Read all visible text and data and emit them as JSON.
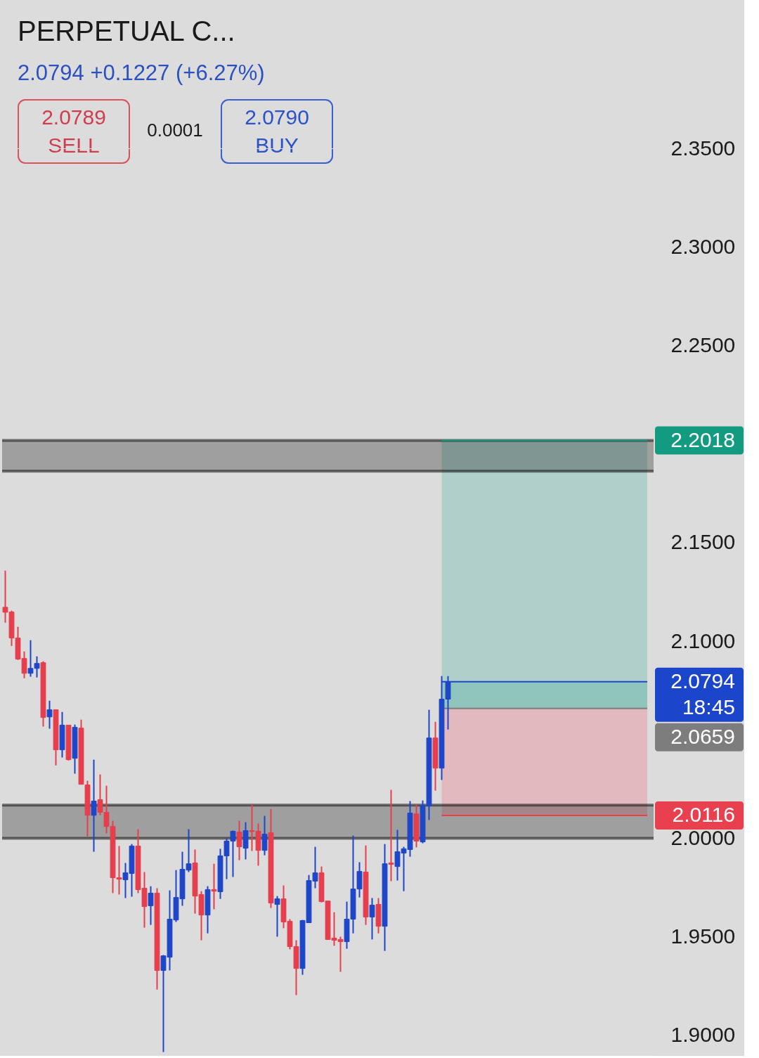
{
  "chart_data": {
    "type": "candlestick",
    "title": "PERPETUAL C...",
    "subtitle": "2.0794 +0.1227 (+6.27%)",
    "annotations": [
      "2.0789",
      "SELL",
      "0.0001",
      "2.0790",
      "BUY"
    ],
    "categories": [
      null,
      null,
      null,
      null,
      null,
      null,
      null,
      null,
      null,
      null,
      null,
      null,
      null,
      null,
      null,
      null,
      null,
      null,
      null,
      null,
      null,
      null,
      null,
      null,
      null,
      null,
      null,
      null,
      null,
      null,
      null,
      null,
      null,
      null,
      null,
      null,
      null,
      null,
      null,
      null,
      null,
      null,
      null,
      null,
      null,
      null,
      null,
      null,
      null,
      null,
      null,
      null,
      null,
      null,
      null,
      null,
      null,
      null,
      null,
      null,
      null,
      null,
      null,
      null,
      null,
      null,
      null,
      null,
      null,
      null,
      null,
      null,
      null,
      null,
      null,
      null,
      null,
      null,
      null,
      null,
      null,
      null,
      null,
      null,
      null,
      null,
      null,
      null,
      null,
      null,
      null,
      null,
      null,
      null,
      null,
      null,
      null,
      null,
      null,
      null,
      null,
      null,
      null
    ],
    "ohlc": [
      [
        2.1172,
        2.1358,
        2.1094,
        2.1147
      ],
      [
        2.1148,
        2.1155,
        2.0976,
        2.1016
      ],
      [
        2.1016,
        2.1073,
        2.0905,
        2.0909
      ],
      [
        2.0912,
        2.0948,
        2.0812,
        2.0837
      ],
      [
        2.0837,
        2.1005,
        2.082,
        2.0862
      ],
      [
        2.0862,
        2.0923,
        2.0816,
        2.0887
      ],
      [
        2.0891,
        2.0898,
        2.0567,
        2.0613
      ],
      [
        2.0616,
        2.0698,
        2.0556,
        2.0652
      ],
      [
        2.0652,
        2.0652,
        2.037,
        2.0449
      ],
      [
        2.0449,
        2.0641,
        2.041,
        2.0574
      ],
      [
        2.0574,
        2.0574,
        2.0395,
        2.0399
      ],
      [
        2.0406,
        2.0577,
        2.0328,
        2.0563
      ],
      [
        2.0559,
        2.0602,
        2.0274,
        2.0274
      ],
      [
        2.0271,
        2.0292,
        2.001,
        2.0117
      ],
      [
        2.0117,
        2.0399,
        1.9932,
        2.0189
      ],
      [
        2.0196,
        2.0324,
        2.0117,
        2.0132
      ],
      [
        2.0132,
        2.0267,
        2.0025,
        2.006
      ],
      [
        2.006,
        2.0089,
        1.9722,
        1.98
      ],
      [
        1.98,
        1.9961,
        1.9715,
        1.9793
      ],
      [
        1.979,
        1.9875,
        1.9697,
        1.9825
      ],
      [
        1.9822,
        1.9971,
        1.9704,
        1.9961
      ],
      [
        1.9961,
        2.0046,
        1.9722,
        1.974
      ],
      [
        1.9747,
        1.9829,
        1.9547,
        1.9654
      ],
      [
        1.9658,
        1.9757,
        1.9561,
        1.9722
      ],
      [
        1.9722,
        1.9747,
        1.9233,
        1.933
      ],
      [
        1.933,
        1.9408,
        1.8916,
        1.9404
      ],
      [
        1.9397,
        1.9736,
        1.933,
        1.959
      ],
      [
        1.9586,
        1.9839,
        1.9576,
        1.97
      ],
      [
        1.9693,
        1.9932,
        1.9658,
        1.9843
      ],
      [
        1.9839,
        2.0046,
        1.9829,
        1.9871
      ],
      [
        1.9875,
        1.9943,
        1.9618,
        1.9707
      ],
      [
        1.9715,
        1.9732,
        1.9483,
        1.9611
      ],
      [
        1.9611,
        1.9757,
        1.9518,
        1.974
      ],
      [
        1.974,
        1.9871,
        1.964,
        1.9732
      ],
      [
        1.9729,
        1.9947,
        1.9693,
        1.9911
      ],
      [
        1.9911,
        2.0,
        1.9793,
        1.9986
      ],
      [
        1.9986,
        2.0039,
        1.9804,
        2.0036
      ],
      [
        2.0032,
        2.0089,
        1.9889,
        1.9957
      ],
      [
        1.995,
        2.0082,
        1.9893,
        2.0039
      ],
      [
        2.0039,
        2.0174,
        1.9936,
        2.0035
      ],
      [
        2.0036,
        2.0075,
        1.9861,
        1.9939
      ],
      [
        1.9939,
        2.0114,
        1.9914,
        2.0021
      ],
      [
        2.0028,
        2.0149,
        1.9647,
        1.9672
      ],
      [
        1.9665,
        1.9707,
        1.9501,
        1.9693
      ],
      [
        1.9693,
        1.9761,
        1.9544,
        1.9576
      ],
      [
        1.9579,
        1.959,
        1.9437,
        1.9451
      ],
      [
        1.9451,
        1.9483,
        1.9205,
        1.934
      ],
      [
        1.934,
        1.9586,
        1.9308,
        1.9583
      ],
      [
        1.9572,
        1.9814,
        1.9572,
        1.9786
      ],
      [
        1.9783,
        1.9957,
        1.9747,
        1.9825
      ],
      [
        1.9825,
        1.9857,
        1.9675,
        1.9679
      ],
      [
        1.9682,
        1.9682,
        1.9487,
        1.9487
      ],
      [
        1.9494,
        1.9625,
        1.9455,
        1.9483
      ],
      [
        1.9487,
        1.9501,
        1.9323,
        1.9476
      ],
      [
        1.9476,
        1.9679,
        1.944,
        1.959
      ],
      [
        1.959,
        2.0014,
        1.9518,
        1.9743
      ],
      [
        1.9743,
        1.9879,
        1.97,
        1.9832
      ],
      [
        1.9829,
        1.9964,
        1.9561,
        1.9601
      ],
      [
        1.9601,
        1.9697,
        1.9487,
        1.9661
      ],
      [
        1.9665,
        1.9697,
        1.9518,
        1.9554
      ],
      [
        1.9554,
        1.9971,
        1.9429,
        1.9871
      ],
      [
        1.9875,
        2.0246,
        1.9783,
        1.9868
      ],
      [
        1.9857,
        2.0043,
        1.9786,
        1.9932
      ],
      [
        1.9925,
        1.9957,
        1.9732,
        1.9947
      ],
      [
        1.9943,
        2.0189,
        1.9907,
        2.0128
      ],
      [
        2.0124,
        2.0171,
        1.9954,
        1.9986
      ],
      [
        1.9982,
        2.0192,
        1.9975,
        2.0167
      ],
      [
        2.0164,
        2.0652,
        2.0093,
        2.0509
      ],
      [
        2.0509,
        2.0591,
        2.0242,
        2.0356
      ],
      [
        2.0356,
        2.0823,
        2.0296,
        2.0706
      ],
      [
        2.0706,
        2.0823,
        2.0552,
        2.0794
      ],
      null,
      null,
      null,
      null,
      null,
      null,
      null,
      null,
      null,
      null,
      null,
      null,
      null,
      null,
      null,
      null,
      null,
      null,
      null,
      null,
      null,
      null,
      null,
      null,
      null,
      null,
      null,
      null,
      null,
      null,
      null,
      null
    ],
    "colors": [
      "#e53e4d",
      "#e53e4d",
      "#e53e4d",
      "#e53e4d",
      "#1e46c8",
      "#1e46c8",
      "#e53e4d",
      "#1e46c8",
      "#e53e4d",
      "#1e46c8",
      "#e53e4d",
      "#1e46c8",
      "#e53e4d",
      "#e53e4d",
      "#1e46c8",
      "#e53e4d",
      "#e53e4d",
      "#e53e4d",
      "#e53e4d",
      "#1e46c8",
      "#1e46c8",
      "#e53e4d",
      "#e53e4d",
      "#1e46c8",
      "#e53e4d",
      "#1e46c8",
      "#1e46c8",
      "#1e46c8",
      "#1e46c8",
      "#1e46c8",
      "#e53e4d",
      "#e53e4d",
      "#1e46c8",
      "#e53e4d",
      "#1e46c8",
      "#1e46c8",
      "#1e46c8",
      "#e53e4d",
      "#1e46c8",
      "#e53e4d",
      "#e53e4d",
      "#1e46c8",
      "#e53e4d",
      "#1e46c8",
      "#e53e4d",
      "#e53e4d",
      "#e53e4d",
      "#1e46c8",
      "#1e46c8",
      "#1e46c8",
      "#e53e4d",
      "#e53e4d",
      "#e53e4d",
      "#e53e4d",
      "#1e46c8",
      "#1e46c8",
      "#1e46c8",
      "#e53e4d",
      "#1e46c8",
      "#e53e4d",
      "#1e46c8",
      "#e53e4d",
      "#1e46c8",
      "#1e46c8",
      "#1e46c8",
      "#e53e4d",
      "#1e46c8",
      "#1e46c8",
      "#e53e4d",
      "#1e46c8",
      "#1e46c8",
      null,
      null,
      null,
      null,
      null,
      null,
      null,
      null,
      null,
      null,
      null,
      null,
      null,
      null,
      null,
      null,
      null,
      null,
      null,
      null,
      null,
      null,
      null,
      null,
      null,
      null,
      null,
      null,
      null,
      null,
      null,
      null
    ],
    "ylim": [
      1.89,
      2.35
    ],
    "yticks": [
      {
        "value": 1.9,
        "label": "1.9000"
      },
      {
        "value": 1.95,
        "label": "1.9500"
      },
      {
        "value": 2.0,
        "label": "2.0000"
      },
      {
        "value": 2.1,
        "label": "2.1000"
      },
      {
        "value": 2.15,
        "label": "2.1500"
      },
      {
        "value": 2.25,
        "label": "2.2500"
      },
      {
        "value": 2.3,
        "label": "2.3000"
      },
      {
        "value": 2.35,
        "label": "2.3500"
      }
    ],
    "tick_labels": "y",
    "bands": [
      {
        "axis": "y",
        "from": 2.1862,
        "to": 2.2018,
        "color": "#a0a0a0"
      },
      {
        "axis": "y",
        "from": 2.0,
        "to": 2.0169,
        "color": "#a0a0a0"
      },
      {
        "axis": "y",
        "from": 2.0659,
        "to": 2.2018,
        "color": "#b0cfca"
      },
      {
        "axis": "y",
        "from": 2.0116,
        "to": 2.0659,
        "color": "#e1b9be"
      },
      {
        "axis": "y",
        "from": 2.0659,
        "to": 2.0794,
        "color": "#8fc5bd"
      }
    ],
    "ref_lines": [
      {
        "axis": "y",
        "value": 2.2018,
        "label": "2.2018",
        "color": "#129b80"
      },
      {
        "axis": "y",
        "value": 2.0794,
        "label": "2.0794\n18:45",
        "color": "#1b45cb"
      },
      {
        "axis": "y",
        "value": 2.0659,
        "label": "2.0659",
        "color": "#7d7d7d",
        "line_style": "solid"
      },
      {
        "axis": "y",
        "value": 2.0116,
        "label": "2.0116",
        "color": "#e8404f"
      }
    ]
  }
}
